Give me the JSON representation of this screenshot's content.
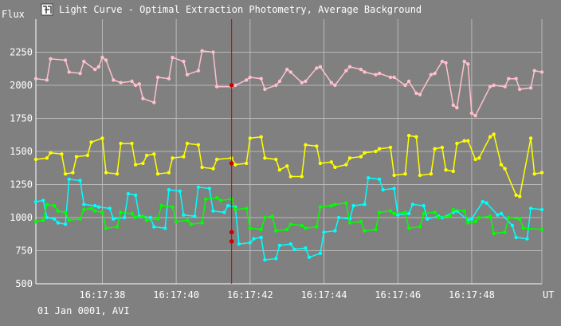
{
  "window": {
    "title": "Light Curve - Optimal Extraction Photometry, Average Background",
    "icon": "app-logo-icon"
  },
  "footer": {
    "date_text": "01 Jan 0001, AVI"
  },
  "chart_data": {
    "type": "scatter",
    "title": "Light Curve - Optimal Extraction Photometry, Average Background",
    "ylabel": "Flux",
    "xlabel": "UT",
    "x_range": [
      1036.2,
      1049.9
    ],
    "ylim": [
      500,
      2500
    ],
    "grid": true,
    "x_ticks": [
      {
        "t": 1038,
        "label": "16:17:38"
      },
      {
        "t": 1040,
        "label": "16:17:40"
      },
      {
        "t": 1042,
        "label": "16:17:42"
      },
      {
        "t": 1044,
        "label": "16:17:44"
      },
      {
        "t": 1046,
        "label": "16:17:46"
      },
      {
        "t": 1048,
        "label": "16:17:48"
      }
    ],
    "y_ticks": [
      500,
      750,
      1000,
      1250,
      1500,
      1750,
      2000,
      2250
    ],
    "cursor": {
      "t": 1041.5,
      "markers": [
        2000,
        1410,
        890,
        820
      ],
      "color": "#cc0000"
    },
    "series": [
      {
        "color": "#ffc0cb",
        "x": [
          1036.2,
          1036.5,
          1036.6,
          1037.0,
          1037.1,
          1037.4,
          1037.5,
          1037.8,
          1037.9,
          1038.0,
          1038.1,
          1038.3,
          1038.5,
          1038.8,
          1038.9,
          1039.0,
          1039.1,
          1039.4,
          1039.5,
          1039.8,
          1039.9,
          1040.2,
          1040.3,
          1040.6,
          1040.7,
          1041.0,
          1041.1,
          1041.5,
          1041.6,
          1041.9,
          1042.0,
          1042.3,
          1042.4,
          1042.7,
          1042.8,
          1043.0,
          1043.1,
          1043.4,
          1043.5,
          1043.8,
          1043.9,
          1044.2,
          1044.3,
          1044.6,
          1044.7,
          1045.0,
          1045.1,
          1045.4,
          1045.5,
          1045.8,
          1045.9,
          1046.2,
          1046.3,
          1046.5,
          1046.6,
          1046.9,
          1047.0,
          1047.2,
          1047.3,
          1047.5,
          1047.6,
          1047.8,
          1047.9,
          1048.0,
          1048.1,
          1048.5,
          1048.6,
          1048.9,
          1049.0,
          1049.2,
          1049.3,
          1049.6,
          1049.7,
          1049.9
        ],
        "y": [
          2050,
          2040,
          2200,
          2190,
          2100,
          2090,
          2180,
          2120,
          2140,
          2210,
          2190,
          2040,
          2020,
          2030,
          2000,
          2010,
          1900,
          1870,
          2060,
          2050,
          2210,
          2180,
          2080,
          2110,
          2260,
          2250,
          1990,
          1990,
          2000,
          2040,
          2060,
          2050,
          1970,
          2000,
          2030,
          2120,
          2100,
          2020,
          2030,
          2130,
          2140,
          2020,
          2000,
          2110,
          2140,
          2120,
          2100,
          2080,
          2090,
          2060,
          2060,
          2000,
          2030,
          1940,
          1930,
          2080,
          2090,
          2180,
          2170,
          1850,
          1830,
          2180,
          2160,
          1790,
          1770,
          1990,
          2000,
          1990,
          2050,
          2050,
          1970,
          1980,
          2110,
          2100
        ]
      },
      {
        "color": "#ffff00",
        "x": [
          1036.2,
          1036.5,
          1036.6,
          1036.9,
          1037.0,
          1037.2,
          1037.3,
          1037.6,
          1037.7,
          1038.0,
          1038.1,
          1038.4,
          1038.5,
          1038.8,
          1038.9,
          1039.1,
          1039.2,
          1039.4,
          1039.5,
          1039.8,
          1039.9,
          1040.2,
          1040.3,
          1040.6,
          1040.7,
          1041.0,
          1041.1,
          1041.5,
          1041.6,
          1041.9,
          1042.0,
          1042.3,
          1042.4,
          1042.7,
          1042.8,
          1043.0,
          1043.1,
          1043.4,
          1043.5,
          1043.8,
          1043.9,
          1044.2,
          1044.3,
          1044.6,
          1044.7,
          1045.0,
          1045.1,
          1045.4,
          1045.5,
          1045.8,
          1045.9,
          1046.2,
          1046.3,
          1046.5,
          1046.6,
          1046.9,
          1047.0,
          1047.2,
          1047.3,
          1047.5,
          1047.6,
          1047.8,
          1047.9,
          1048.1,
          1048.2,
          1048.5,
          1048.6,
          1048.8,
          1048.9,
          1049.2,
          1049.3,
          1049.6,
          1049.7,
          1049.9
        ],
        "y": [
          1440,
          1450,
          1490,
          1480,
          1330,
          1340,
          1460,
          1470,
          1570,
          1600,
          1340,
          1330,
          1560,
          1560,
          1400,
          1410,
          1470,
          1480,
          1330,
          1340,
          1450,
          1460,
          1560,
          1550,
          1380,
          1370,
          1440,
          1450,
          1400,
          1410,
          1600,
          1610,
          1450,
          1440,
          1360,
          1390,
          1310,
          1310,
          1550,
          1540,
          1410,
          1420,
          1380,
          1400,
          1450,
          1460,
          1490,
          1500,
          1520,
          1530,
          1320,
          1330,
          1620,
          1610,
          1320,
          1330,
          1520,
          1530,
          1360,
          1350,
          1560,
          1580,
          1580,
          1440,
          1450,
          1610,
          1630,
          1400,
          1370,
          1170,
          1160,
          1600,
          1330,
          1340
        ]
      },
      {
        "color": "#00ffff",
        "x": [
          1036.2,
          1036.4,
          1036.5,
          1036.7,
          1036.8,
          1037.0,
          1037.1,
          1037.4,
          1037.5,
          1037.8,
          1037.9,
          1038.2,
          1038.3,
          1038.6,
          1038.7,
          1038.9,
          1039.0,
          1039.3,
          1039.4,
          1039.7,
          1039.8,
          1040.1,
          1040.2,
          1040.5,
          1040.6,
          1040.9,
          1041.0,
          1041.3,
          1041.4,
          1041.6,
          1041.7,
          1042.0,
          1042.1,
          1042.3,
          1042.4,
          1042.7,
          1042.8,
          1043.1,
          1043.2,
          1043.5,
          1043.6,
          1043.9,
          1044.0,
          1044.3,
          1044.4,
          1044.7,
          1044.8,
          1045.1,
          1045.2,
          1045.5,
          1045.6,
          1045.9,
          1046.0,
          1046.3,
          1046.4,
          1046.7,
          1046.8,
          1047.1,
          1047.2,
          1047.5,
          1047.6,
          1047.9,
          1048.0,
          1048.3,
          1048.4,
          1048.7,
          1048.8,
          1049.1,
          1049.2,
          1049.5,
          1049.6,
          1049.9
        ],
        "y": [
          1120,
          1130,
          1000,
          990,
          960,
          950,
          1290,
          1280,
          1100,
          1090,
          1080,
          1070,
          990,
          1000,
          1180,
          1170,
          1010,
          1000,
          930,
          920,
          1210,
          1200,
          1020,
          1010,
          1230,
          1220,
          1050,
          1040,
          1090,
          1080,
          800,
          810,
          840,
          850,
          680,
          690,
          790,
          800,
          760,
          770,
          700,
          730,
          890,
          900,
          1000,
          990,
          1090,
          1100,
          1300,
          1290,
          1210,
          1220,
          1020,
          1030,
          1100,
          1090,
          990,
          1010,
          1000,
          1040,
          1050,
          980,
          990,
          1120,
          1110,
          1020,
          1030,
          940,
          850,
          840,
          1070,
          1060
        ]
      },
      {
        "color": "#00ff00",
        "x": [
          1036.2,
          1036.4,
          1036.5,
          1036.7,
          1036.8,
          1037.0,
          1037.1,
          1037.4,
          1037.5,
          1037.7,
          1037.8,
          1038.0,
          1038.1,
          1038.4,
          1038.5,
          1038.8,
          1038.9,
          1039.1,
          1039.2,
          1039.5,
          1039.6,
          1039.9,
          1040.0,
          1040.3,
          1040.4,
          1040.7,
          1040.8,
          1041.1,
          1041.2,
          1041.5,
          1041.6,
          1041.9,
          1042.0,
          1042.3,
          1042.4,
          1042.6,
          1042.7,
          1043.0,
          1043.1,
          1043.4,
          1043.5,
          1043.8,
          1043.9,
          1044.2,
          1044.3,
          1044.6,
          1044.7,
          1045.0,
          1045.1,
          1045.4,
          1045.5,
          1045.8,
          1045.9,
          1046.2,
          1046.3,
          1046.6,
          1046.7,
          1047.0,
          1047.1,
          1047.4,
          1047.5,
          1047.8,
          1047.9,
          1048.1,
          1048.2,
          1048.5,
          1048.6,
          1048.9,
          1049.0,
          1049.3,
          1049.4,
          1049.9
        ],
        "y": [
          970,
          980,
          1100,
          1090,
          1050,
          1040,
          980,
          990,
          1060,
          1070,
          1050,
          1040,
          920,
          930,
          1040,
          1030,
          1000,
          1010,
          980,
          990,
          1090,
          1080,
          970,
          980,
          950,
          960,
          1140,
          1150,
          1130,
          1140,
          1060,
          1070,
          920,
          910,
          1000,
          1010,
          900,
          910,
          950,
          940,
          920,
          930,
          1080,
          1090,
          1100,
          1110,
          960,
          970,
          900,
          910,
          1040,
          1050,
          1030,
          1040,
          920,
          930,
          1030,
          1040,
          1000,
          1010,
          1060,
          1050,
          960,
          970,
          1000,
          1010,
          880,
          890,
          1000,
          990,
          920,
          910
        ]
      }
    ]
  }
}
